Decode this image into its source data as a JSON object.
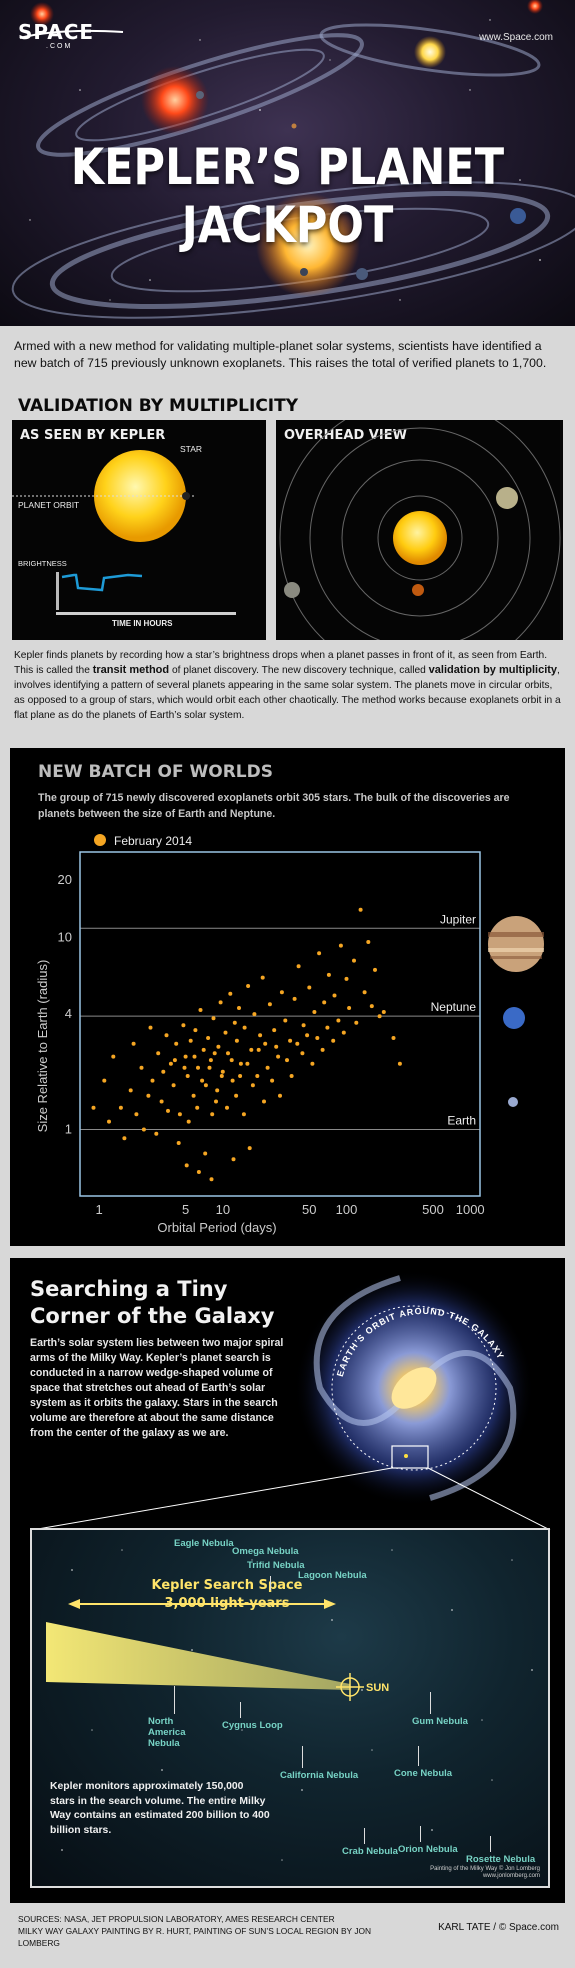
{
  "hero": {
    "logo_text": "SPACE",
    "logo_sub": ".COM",
    "site": "www.Space.com",
    "title": "KEPLER’S PLANET JACKPOT"
  },
  "intro": "Armed with a new method for validating multiple-planet solar systems, scientists have identified a new batch of 715 previously unknown exoplanets. This raises the total of verified planets to 1,700.",
  "validation": {
    "heading": "VALIDATION BY MULTIPLICITY",
    "kepler_title": "AS SEEN BY KEPLER",
    "star_label": "STAR",
    "orbit_label": "PLANET ORBIT",
    "brightness_label": "BRIGHTNESS",
    "time_label": "TIME  IN  HOURS",
    "overhead_title": "OVERHEAD VIEW"
  },
  "description": {
    "p1": "Kepler finds planets by recording how a star’s brightness drops when a planet passes in front of it, as seen from Earth. This is called the ",
    "b1": "transit method",
    "p2": " of planet discovery. The new discovery technique, called ",
    "b2": "validation by multiplicity",
    "p3": ", involves identifying a pattern of several planets appearing in the same solar system. The planets move in circular orbits, as opposed to a group of stars, which would orbit each other chaotically. The method works because exoplanets orbit in a flat plane as do the planets of Earth’s solar system."
  },
  "batch": {
    "title": "NEW BATCH OF WORLDS",
    "text": "The group of 715 newly discovered exoplanets orbit 305 stars. The bulk of the discoveries are planets between the size of Earth and Neptune."
  },
  "chart_data": {
    "type": "scatter",
    "legend": [
      "February 2014"
    ],
    "legend_placement": "top-left",
    "xlabel": "Orbital Period (days)",
    "ylabel": "Size Relative to Earth (radius)",
    "x_scale": "log",
    "y_scale": "log",
    "xlim": [
      0.7,
      1200
    ],
    "ylim": [
      0.45,
      28
    ],
    "x_ticks": [
      1,
      5,
      10,
      50,
      100,
      500,
      1000
    ],
    "y_ticks": [
      1,
      4,
      10,
      20
    ],
    "reference_lines": [
      {
        "name": "Jupiter",
        "y": 11.2
      },
      {
        "name": "Neptune",
        "y": 3.9
      },
      {
        "name": "Earth",
        "y": 1
      }
    ],
    "series": [
      {
        "name": "February 2014",
        "color": "#f5a623",
        "points": [
          [
            1.2,
            1.1
          ],
          [
            1.5,
            1.3
          ],
          [
            1.8,
            1.6
          ],
          [
            2,
            1.2
          ],
          [
            2.2,
            2.1
          ],
          [
            2.5,
            1.5
          ],
          [
            2.7,
            1.8
          ],
          [
            3,
            2.5
          ],
          [
            3.2,
            1.4
          ],
          [
            3.5,
            3.1
          ],
          [
            3.8,
            2.2
          ],
          [
            4,
            1.7
          ],
          [
            4.2,
            2.8
          ],
          [
            4.5,
            1.2
          ],
          [
            4.8,
            3.5
          ],
          [
            5,
            2.4
          ],
          [
            5.2,
            1.9
          ],
          [
            5.5,
            2.9
          ],
          [
            5.8,
            1.5
          ],
          [
            6,
            3.3
          ],
          [
            6.3,
            2.1
          ],
          [
            6.6,
            4.2
          ],
          [
            7,
            2.6
          ],
          [
            7.3,
            1.7
          ],
          [
            7.6,
            3
          ],
          [
            8,
            2.3
          ],
          [
            8.4,
            3.8
          ],
          [
            8.8,
            1.4
          ],
          [
            9.2,
            2.7
          ],
          [
            9.6,
            4.6
          ],
          [
            10,
            2
          ],
          [
            10.5,
            3.2
          ],
          [
            11,
            2.5
          ],
          [
            11.5,
            5.1
          ],
          [
            12,
            1.8
          ],
          [
            12.5,
            3.6
          ],
          [
            13,
            2.9
          ],
          [
            13.5,
            4.3
          ],
          [
            14,
            2.2
          ],
          [
            15,
            3.4
          ],
          [
            16,
            5.6
          ],
          [
            17,
            2.6
          ],
          [
            18,
            4
          ],
          [
            19,
            1.9
          ],
          [
            20,
            3.1
          ],
          [
            21,
            6.2
          ],
          [
            22,
            2.8
          ],
          [
            24,
            4.5
          ],
          [
            26,
            3.3
          ],
          [
            28,
            2.4
          ],
          [
            30,
            5.2
          ],
          [
            32,
            3.7
          ],
          [
            35,
            2.9
          ],
          [
            38,
            4.8
          ],
          [
            41,
            7.1
          ],
          [
            45,
            3.5
          ],
          [
            50,
            5.5
          ],
          [
            55,
            4.1
          ],
          [
            60,
            8.3
          ],
          [
            66,
            4.6
          ],
          [
            72,
            6.4
          ],
          [
            80,
            5
          ],
          [
            90,
            9.1
          ],
          [
            100,
            6.1
          ],
          [
            115,
            7.6
          ],
          [
            130,
            14
          ],
          [
            150,
            9.5
          ],
          [
            170,
            6.8
          ],
          [
            200,
            4.1
          ],
          [
            240,
            3
          ],
          [
            270,
            2.2
          ],
          [
            0.9,
            1.3
          ],
          [
            1.1,
            1.8
          ],
          [
            1.3,
            2.4
          ],
          [
            1.6,
            0.9
          ],
          [
            1.9,
            2.8
          ],
          [
            2.3,
            1
          ],
          [
            2.6,
            3.4
          ],
          [
            2.9,
            0.95
          ],
          [
            3.3,
            2
          ],
          [
            3.6,
            1.25
          ],
          [
            4.1,
            2.3
          ],
          [
            4.4,
            0.85
          ],
          [
            4.9,
            2.1
          ],
          [
            5.3,
            1.1
          ],
          [
            5.9,
            2.4
          ],
          [
            6.2,
            1.3
          ],
          [
            6.8,
            1.8
          ],
          [
            7.2,
            0.75
          ],
          [
            7.8,
            2.1
          ],
          [
            8.2,
            1.2
          ],
          [
            8.6,
            2.5
          ],
          [
            9,
            1.6
          ],
          [
            9.8,
            1.9
          ],
          [
            10.8,
            1.3
          ],
          [
            11.8,
            2.3
          ],
          [
            12.8,
            1.5
          ],
          [
            13.8,
            1.9
          ],
          [
            14.8,
            1.2
          ],
          [
            15.8,
            2.2
          ],
          [
            17.5,
            1.7
          ],
          [
            19.5,
            2.6
          ],
          [
            21.5,
            1.4
          ],
          [
            23,
            2.1
          ],
          [
            25,
            1.8
          ],
          [
            27,
            2.7
          ],
          [
            29,
            1.5
          ],
          [
            33,
            2.3
          ],
          [
            36,
            1.9
          ],
          [
            40,
            2.8
          ],
          [
            44,
            2.5
          ],
          [
            48,
            3.1
          ],
          [
            53,
            2.2
          ],
          [
            58,
            3
          ],
          [
            64,
            2.6
          ],
          [
            70,
            3.4
          ],
          [
            78,
            2.9
          ],
          [
            86,
            3.7
          ],
          [
            95,
            3.2
          ],
          [
            105,
            4.3
          ],
          [
            120,
            3.6
          ],
          [
            140,
            5.2
          ],
          [
            160,
            4.4
          ],
          [
            185,
            3.9
          ],
          [
            6.4,
            0.6
          ],
          [
            8.1,
            0.55
          ],
          [
            12.2,
            0.7
          ],
          [
            16.5,
            0.8
          ],
          [
            5.1,
            0.65
          ]
        ]
      }
    ]
  },
  "galaxy": {
    "title": "Searching a Tiny Corner of the Galaxy",
    "text": "Earth’s solar system lies between two major spiral arms of the Milky Way. Kepler’s planet search is conducted in a narrow wedge-shaped volume of space that stretches out ahead of Earth’s solar system as it orbits the galaxy. Stars in the search volume are therefore at about the same distance from the center of the galaxy as we are.",
    "orbit_label": "EARTH’S ORBIT AROUND THE GALAXY",
    "search_title": "Kepler Search Space",
    "search_sub": "3,000 light-years",
    "sun_label": "SUN",
    "nebulae": {
      "eagle": "Eagle Nebula",
      "omega": "Omega Nebula",
      "trifid": "Trifid Nebula",
      "lagoon": "Lagoon Nebula",
      "north_america": "North America Nebula",
      "cygnus": "Cygnus Loop",
      "gum": "Gum Nebula",
      "california": "California Nebula",
      "cone": "Cone Nebula",
      "crab": "Crab Nebula",
      "orion": "Orion Nebula",
      "rosette": "Rosette Nebula"
    },
    "note": "Kepler monitors approximately 150,000 stars in the search volume. The entire Milky Way contains an estimated 200 billion to 400 billion stars.",
    "painting_credit_1": "Painting of the Milky Way © Jon Lomberg",
    "painting_credit_2": "www.jonlomberg.com"
  },
  "footer": {
    "sources": "SOURCES: NASA, JET PROPULSION LABORATORY, AMES RESEARCH CENTER",
    "credits": "MILKY WAY GALAXY PAINTING BY R. HURT, PAINTING OF SUN’S LOCAL REGION BY JON LOMBERG",
    "author": "KARL TATE / © Space.com"
  }
}
